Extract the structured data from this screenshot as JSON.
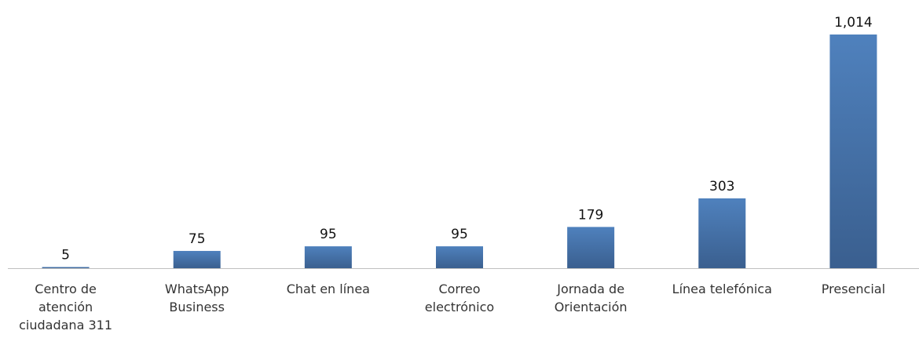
{
  "chart_data": {
    "type": "bar",
    "categories": [
      [
        "Centro de",
        "atención",
        "ciudadana 311"
      ],
      [
        "WhatsApp",
        "Business"
      ],
      [
        "Chat en línea"
      ],
      [
        "Correo",
        "electrónico"
      ],
      [
        "Jornada de",
        "Orientación"
      ],
      [
        "Línea telefónica"
      ],
      [
        "Presencial"
      ]
    ],
    "values": [
      5,
      75,
      95,
      95,
      179,
      303,
      1014
    ],
    "value_labels": [
      "5",
      "75",
      "95",
      "95",
      "179",
      "303",
      "1,014"
    ],
    "title": "",
    "xlabel": "",
    "ylabel": "",
    "ylim": [
      0,
      1014
    ],
    "grid": false,
    "legend": "none",
    "colors": {
      "bar_top": "#4f81bd",
      "bar_bottom": "#3a5f8f",
      "axis": "#bfbfbf"
    }
  }
}
